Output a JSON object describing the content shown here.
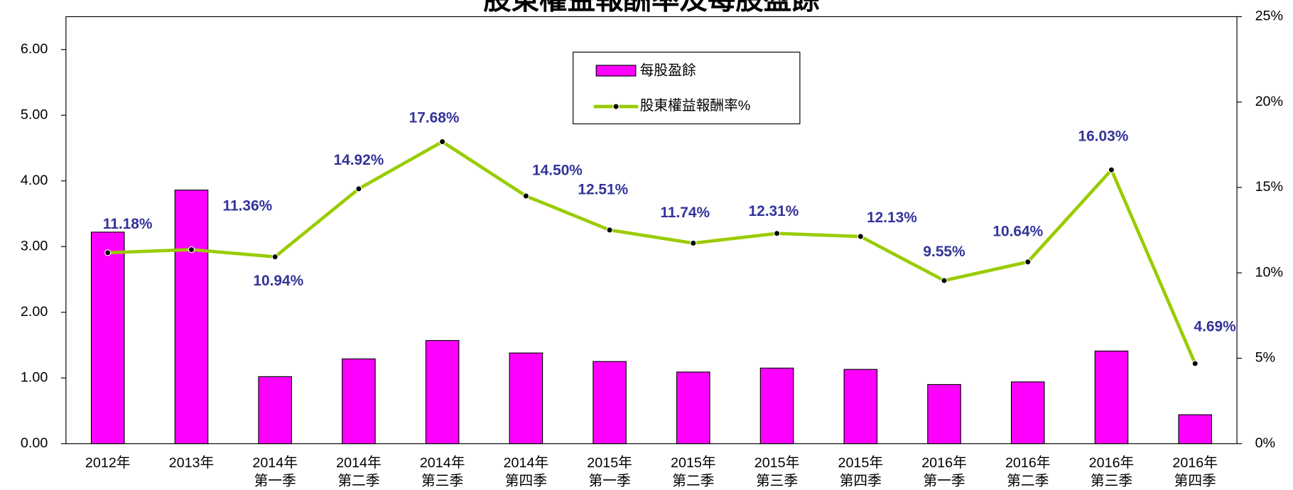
{
  "chart_data": {
    "type": "bar_line",
    "title": "股東權益報酬率及每股盈餘",
    "categories": [
      [
        "2012年"
      ],
      [
        "2013年"
      ],
      [
        "2014年",
        "第一季"
      ],
      [
        "2014年",
        "第二季"
      ],
      [
        "2014年",
        "第三季"
      ],
      [
        "2014年",
        "第四季"
      ],
      [
        "2015年",
        "第一季"
      ],
      [
        "2015年",
        "第二季"
      ],
      [
        "2015年",
        "第三季"
      ],
      [
        "2015年",
        "第四季"
      ],
      [
        "2016年",
        "第一季"
      ],
      [
        "2016年",
        "第二季"
      ],
      [
        "2016年",
        "第三季"
      ],
      [
        "2016年",
        "第四季"
      ]
    ],
    "series": [
      {
        "name": "每股盈餘",
        "color": "#ff00ff",
        "values": [
          3.22,
          3.86,
          1.02,
          1.29,
          1.57,
          1.38,
          1.25,
          1.09,
          1.15,
          1.13,
          0.9,
          0.94,
          1.41,
          0.44
        ]
      },
      {
        "name": "股東權益報酬率%",
        "color": "#99cc00",
        "axis": "y2",
        "values": [
          11.18,
          11.36,
          10.94,
          14.92,
          17.68,
          14.5,
          12.51,
          11.74,
          12.31,
          12.13,
          9.55,
          10.64,
          16.03,
          4.69
        ],
        "value_labels": [
          "11.18%",
          "11.36%",
          "10.94%",
          "14.92%",
          "17.68%",
          "14.50%",
          "12.51%",
          "11.74%",
          "12.31%",
          "12.13%",
          "9.55%",
          "10.64%",
          "16.03%",
          "4.69%"
        ]
      }
    ],
    "ylim": [
      0,
      6.5
    ],
    "yticks": [
      {
        "value": 0,
        "label": "0.00"
      },
      {
        "value": 1,
        "label": "1.00"
      },
      {
        "value": 2,
        "label": "2.00"
      },
      {
        "value": 3,
        "label": "3.00"
      },
      {
        "value": 4,
        "label": "4.00"
      },
      {
        "value": 5,
        "label": "5.00"
      },
      {
        "value": 6,
        "label": "6.00"
      }
    ],
    "y2lim": [
      0,
      25
    ],
    "y2ticks": [
      {
        "value": 0,
        "label": "0%"
      },
      {
        "value": 5,
        "label": "5%"
      },
      {
        "value": 10,
        "label": "10%"
      },
      {
        "value": 15,
        "label": "15%"
      },
      {
        "value": 20,
        "label": "20%"
      },
      {
        "value": 25,
        "label": "25%"
      }
    ]
  }
}
